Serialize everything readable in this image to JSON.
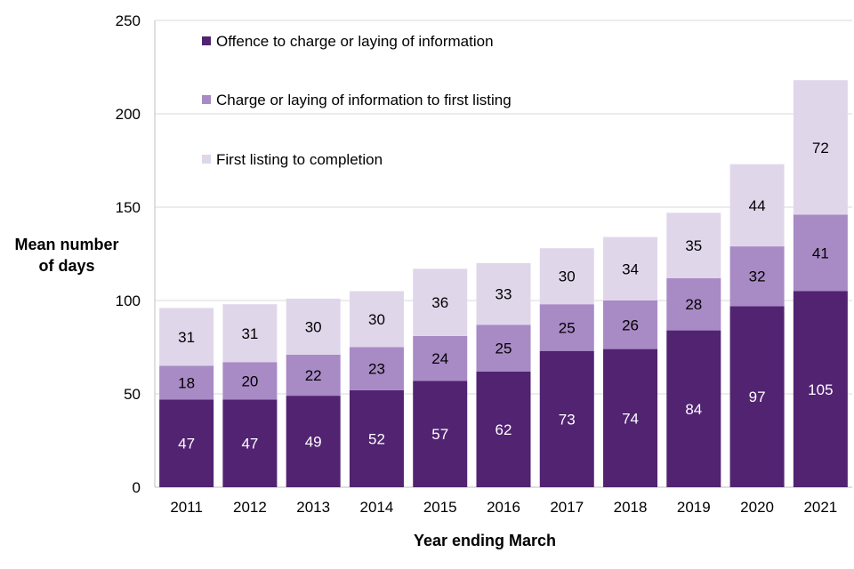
{
  "chart_data": {
    "type": "bar",
    "stacked": true,
    "categories": [
      "2011",
      "2012",
      "2013",
      "2014",
      "2015",
      "2016",
      "2017",
      "2018",
      "2019",
      "2020",
      "2021"
    ],
    "series": [
      {
        "name": "Offence to charge or laying of information",
        "color": "#512371",
        "values": [
          47,
          47,
          49,
          52,
          57,
          62,
          73,
          74,
          84,
          97,
          105
        ]
      },
      {
        "name": "Charge or laying of information to first listing",
        "color": "#a88ac5",
        "values": [
          18,
          20,
          22,
          23,
          24,
          25,
          25,
          26,
          28,
          32,
          41
        ]
      },
      {
        "name": "First listing to completion",
        "color": "#e0d6ea",
        "values": [
          31,
          31,
          30,
          30,
          36,
          33,
          30,
          34,
          35,
          44,
          72
        ]
      }
    ],
    "xlabel": "Year ending March",
    "ylabel": [
      "Mean number",
      "of days"
    ],
    "ylim": [
      0,
      250
    ],
    "yticks": [
      0,
      50,
      100,
      150,
      200,
      250
    ],
    "grid": true,
    "legend_position": "top-left"
  }
}
